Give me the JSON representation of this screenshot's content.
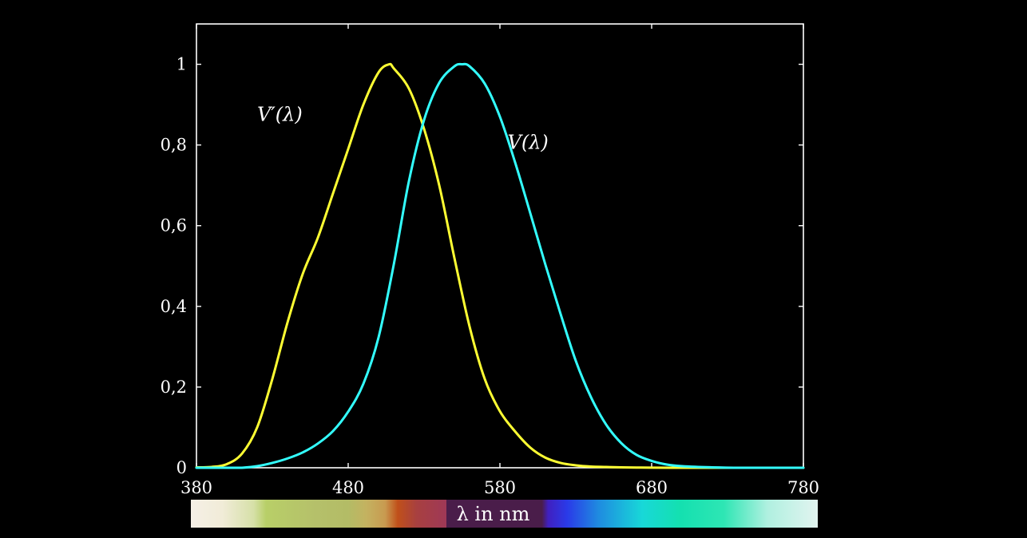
{
  "chart_data": {
    "type": "line",
    "xlabel": "λ in nm",
    "ylabel": "",
    "xlim": [
      380,
      780
    ],
    "ylim": [
      0,
      1.1
    ],
    "x_ticks": [
      380,
      480,
      580,
      680,
      780
    ],
    "y_ticks": [
      {
        "value": 0,
        "label": "0"
      },
      {
        "value": 0.2,
        "label": "0,2"
      },
      {
        "value": 0.4,
        "label": "0,4"
      },
      {
        "value": 0.6,
        "label": "0,6"
      },
      {
        "value": 0.8,
        "label": "0,8"
      },
      {
        "value": 1,
        "label": "1"
      }
    ],
    "grid": false,
    "series": [
      {
        "name": "V'(λ)",
        "color": "#ffff33",
        "x": [
          380,
          390,
          400,
          410,
          420,
          430,
          440,
          450,
          460,
          470,
          480,
          490,
          500,
          507,
          510,
          520,
          530,
          540,
          550,
          560,
          570,
          580,
          590,
          600,
          610,
          620,
          630,
          640,
          650,
          660,
          670,
          680,
          700,
          720,
          780
        ],
        "y": [
          0.001,
          0.002,
          0.009,
          0.035,
          0.1,
          0.22,
          0.36,
          0.48,
          0.57,
          0.68,
          0.79,
          0.9,
          0.98,
          1.0,
          0.99,
          0.94,
          0.84,
          0.7,
          0.52,
          0.35,
          0.22,
          0.14,
          0.09,
          0.05,
          0.025,
          0.012,
          0.006,
          0.003,
          0.002,
          0.001,
          0.0005,
          0.0002,
          0.0,
          0.0,
          0.0
        ]
      },
      {
        "name": "V(λ)",
        "color": "#33ffff",
        "x": [
          380,
          390,
          400,
          410,
          420,
          430,
          440,
          450,
          460,
          470,
          480,
          490,
          500,
          510,
          520,
          530,
          540,
          550,
          555,
          560,
          570,
          580,
          590,
          600,
          610,
          620,
          630,
          640,
          650,
          660,
          670,
          680,
          690,
          700,
          720,
          740,
          780
        ],
        "y": [
          0.0,
          0.0,
          0.0,
          0.0,
          0.004,
          0.012,
          0.023,
          0.038,
          0.06,
          0.091,
          0.139,
          0.208,
          0.323,
          0.503,
          0.71,
          0.862,
          0.954,
          0.995,
          1.0,
          0.995,
          0.952,
          0.87,
          0.757,
          0.631,
          0.503,
          0.381,
          0.265,
          0.175,
          0.107,
          0.061,
          0.032,
          0.017,
          0.008,
          0.004,
          0.001,
          0.0,
          0.0
        ]
      }
    ],
    "annotations": [
      {
        "text": "V′(λ)",
        "x": 420,
        "y": 0.86
      },
      {
        "text": "V(λ)",
        "x": 585,
        "y": 0.79
      }
    ],
    "spectrum_bar": {
      "stops": [
        {
          "offset": 0.0,
          "color": "#f5efe6"
        },
        {
          "offset": 0.05,
          "color": "#f1ecd8"
        },
        {
          "offset": 0.1,
          "color": "#d6e0a8"
        },
        {
          "offset": 0.12,
          "color": "#b8cf68"
        },
        {
          "offset": 0.2,
          "color": "#b5c06a"
        },
        {
          "offset": 0.25,
          "color": "#b3bc66"
        },
        {
          "offset": 0.28,
          "color": "#c4b260"
        },
        {
          "offset": 0.31,
          "color": "#c89a50"
        },
        {
          "offset": 0.33,
          "color": "#c0501a"
        },
        {
          "offset": 0.36,
          "color": "#a84040"
        },
        {
          "offset": 0.41,
          "color": "#9e3858"
        },
        {
          "offset": 0.42,
          "color": "#5a2040"
        },
        {
          "offset": 0.56,
          "color": "#4a1d4a"
        },
        {
          "offset": 0.57,
          "color": "#4020c0"
        },
        {
          "offset": 0.6,
          "color": "#2a3ae8"
        },
        {
          "offset": 0.65,
          "color": "#1f8be0"
        },
        {
          "offset": 0.72,
          "color": "#18d8d8"
        },
        {
          "offset": 0.78,
          "color": "#14e0b0"
        },
        {
          "offset": 0.85,
          "color": "#2ee6b4"
        },
        {
          "offset": 0.92,
          "color": "#b0f0e0"
        },
        {
          "offset": 1.0,
          "color": "#e2f4f0"
        }
      ]
    }
  }
}
